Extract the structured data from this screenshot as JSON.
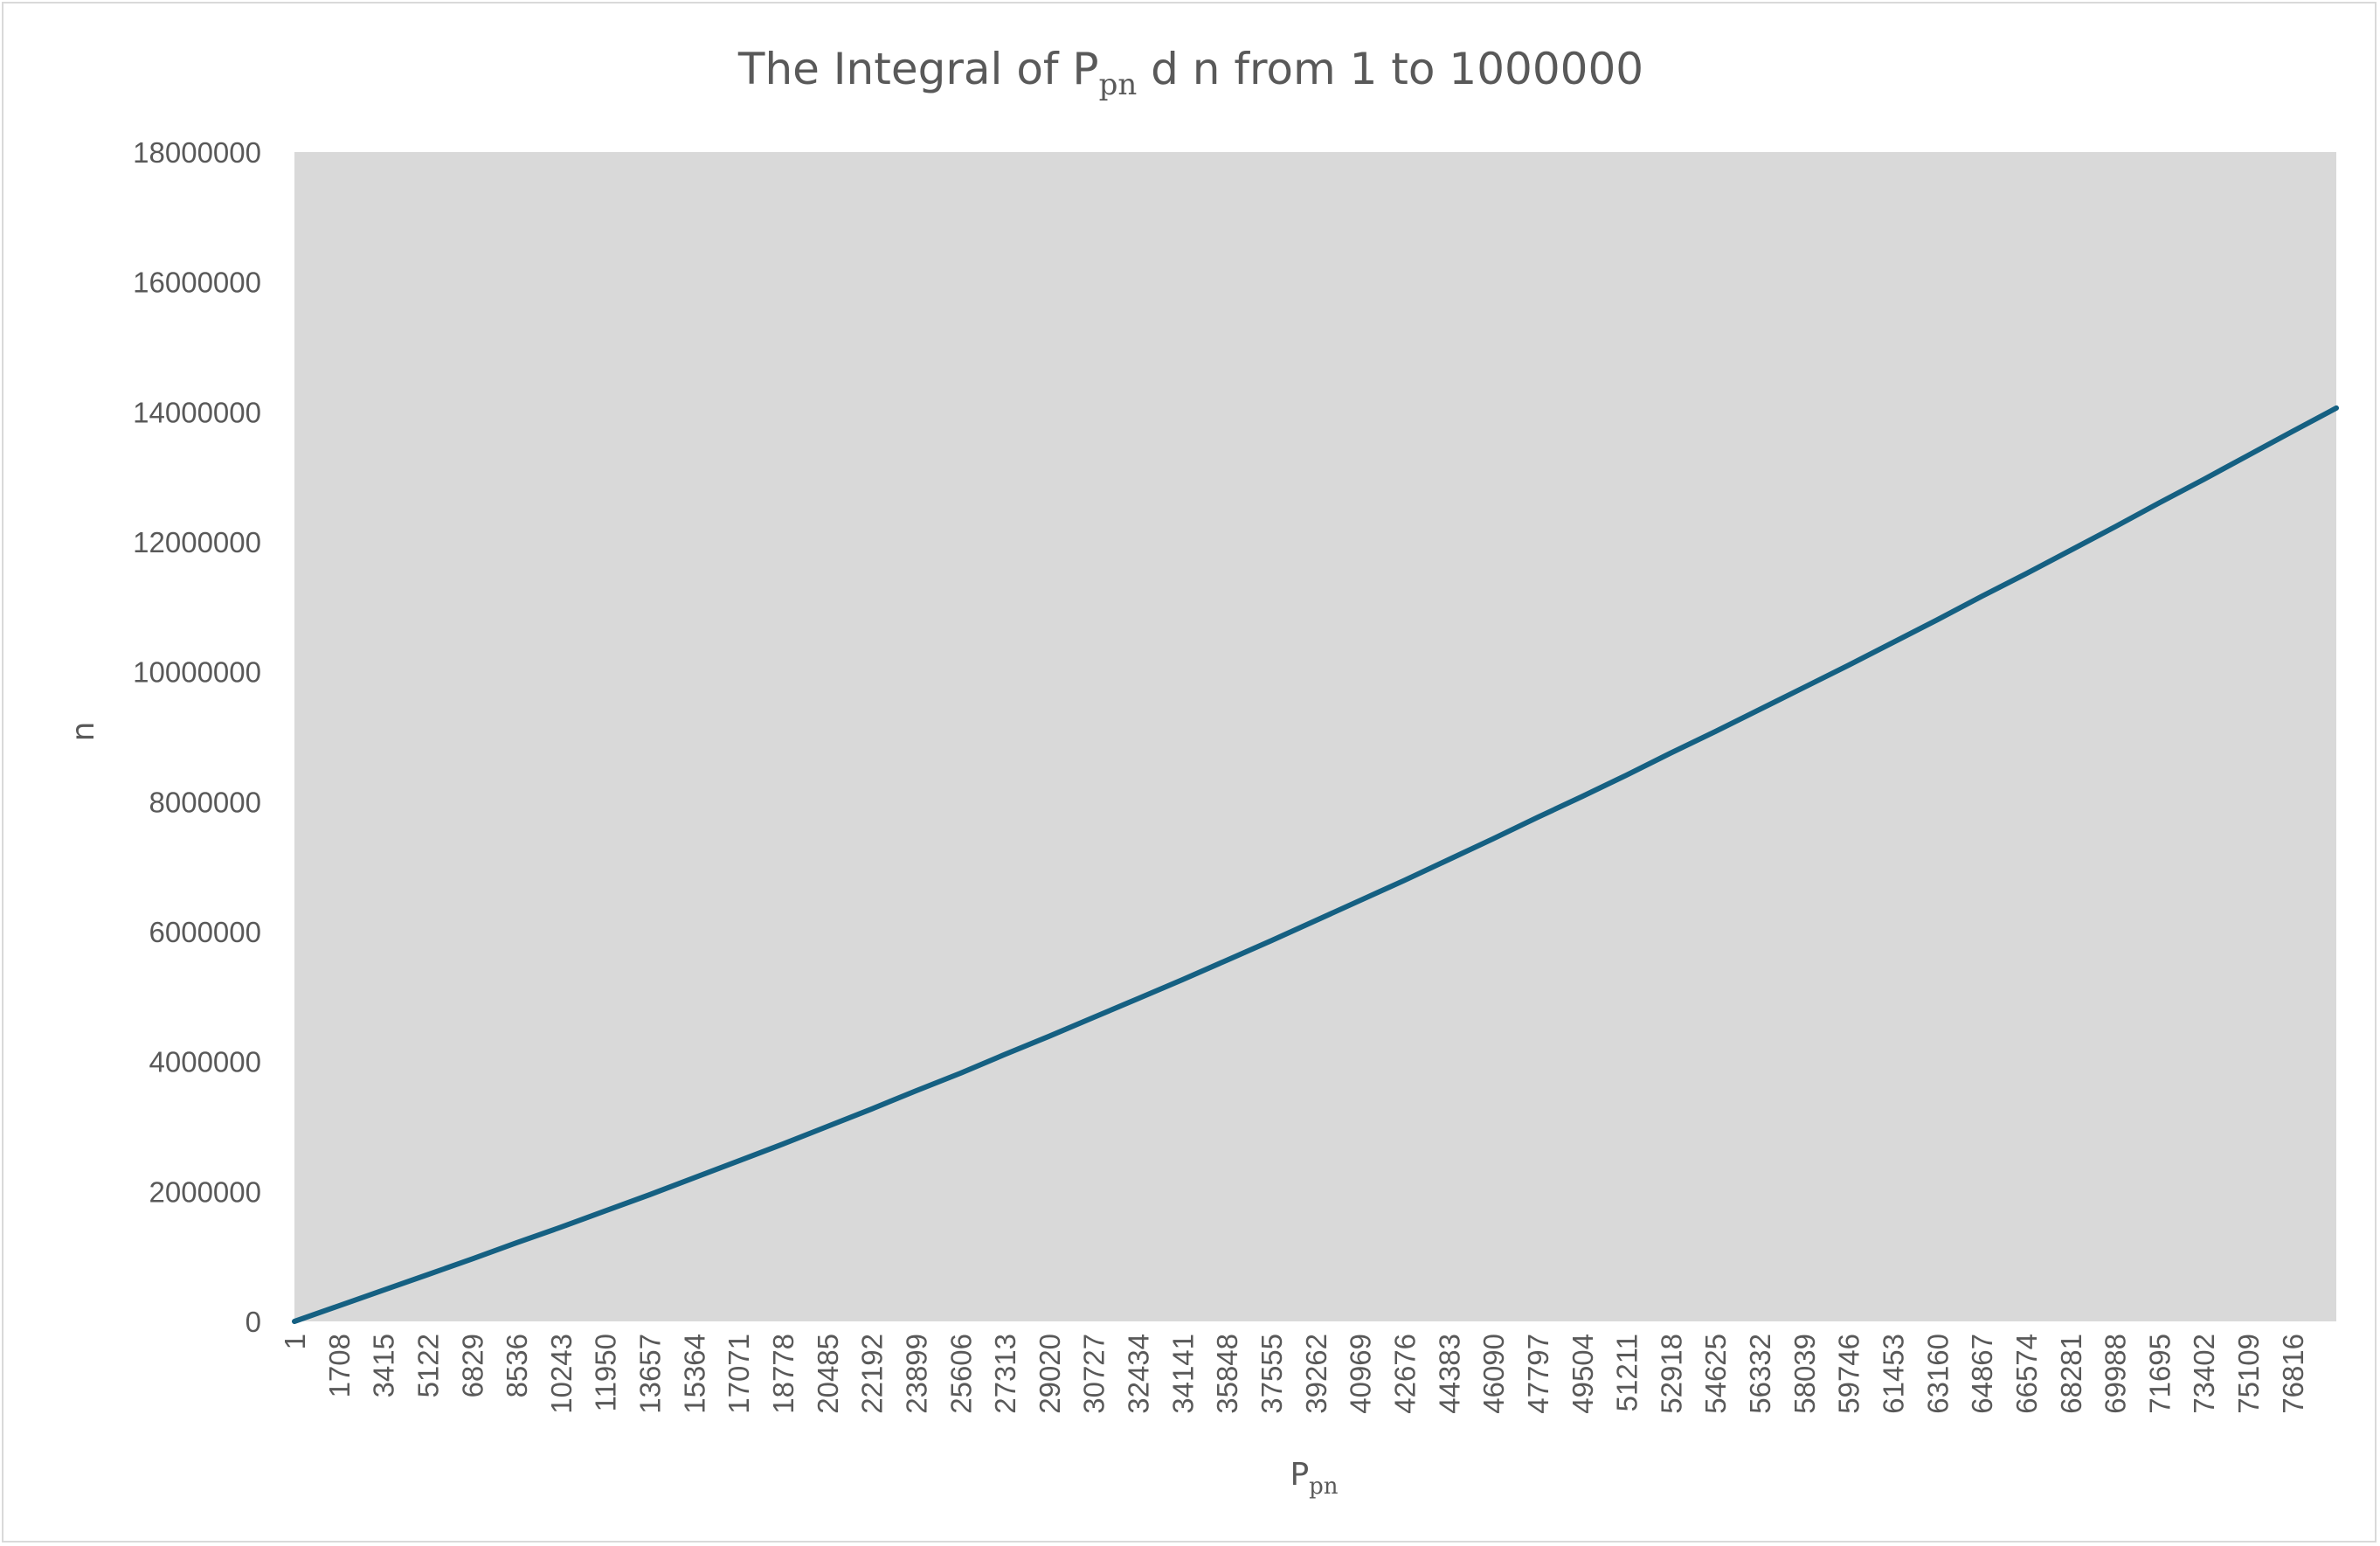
{
  "chart_data": {
    "type": "line",
    "title": "The Integral of P",
    "title_sub": "pn",
    "title_rest": " d n from 1 to 1000000",
    "xlabel": "P",
    "xlabel_sub": "pn",
    "ylabel": "n",
    "ylim": [
      0,
      18000000
    ],
    "y_ticks": [
      0,
      2000000,
      4000000,
      6000000,
      8000000,
      10000000,
      12000000,
      14000000,
      16000000,
      18000000
    ],
    "x_tick_labels": [
      "1",
      "1708",
      "3415",
      "5122",
      "6829",
      "8536",
      "10243",
      "11950",
      "13657",
      "15364",
      "17071",
      "18778",
      "20485",
      "22192",
      "23899",
      "25606",
      "27313",
      "29020",
      "30727",
      "32434",
      "34141",
      "35848",
      "37555",
      "39262",
      "40969",
      "42676",
      "44383",
      "46090",
      "47797",
      "49504",
      "51211",
      "52918",
      "54625",
      "56332",
      "58039",
      "59746",
      "61453",
      "63160",
      "64867",
      "66574",
      "68281",
      "69988",
      "71695",
      "73402",
      "75109",
      "76816"
    ],
    "xlim": [
      1,
      78500
    ],
    "grid": false,
    "plot_background": "#d9d9d9",
    "line_color": "#156082",
    "series": [
      {
        "x": [
          1,
          1708,
          3415,
          5122,
          6829,
          8536,
          10243,
          11950,
          13657,
          15364,
          17071,
          18778,
          20485,
          22192,
          23899,
          25606,
          27313,
          29020,
          30727,
          32434,
          34141,
          35848,
          37555,
          39262,
          40969,
          42676,
          44383,
          46090,
          47797,
          49504,
          51211,
          52918,
          54625,
          56332,
          58039,
          59746,
          61453,
          63160,
          64867,
          66574,
          68281,
          69988,
          71695,
          73402,
          75109,
          76816,
          78500
        ],
        "values": [
          0,
          240000,
          480000,
          720000,
          960000,
          1210000,
          1450000,
          1700000,
          1950000,
          2210000,
          2470000,
          2730000,
          3000000,
          3270000,
          3550000,
          3820000,
          4110000,
          4390000,
          4680000,
          4970000,
          5260000,
          5560000,
          5860000,
          6170000,
          6480000,
          6790000,
          7110000,
          7430000,
          7760000,
          8080000,
          8410000,
          8750000,
          9080000,
          9420000,
          9760000,
          10100000,
          10450000,
          10800000,
          11160000,
          11510000,
          11870000,
          12230000,
          12600000,
          12960000,
          13330000,
          13700000,
          14060000
        ]
      }
    ]
  }
}
